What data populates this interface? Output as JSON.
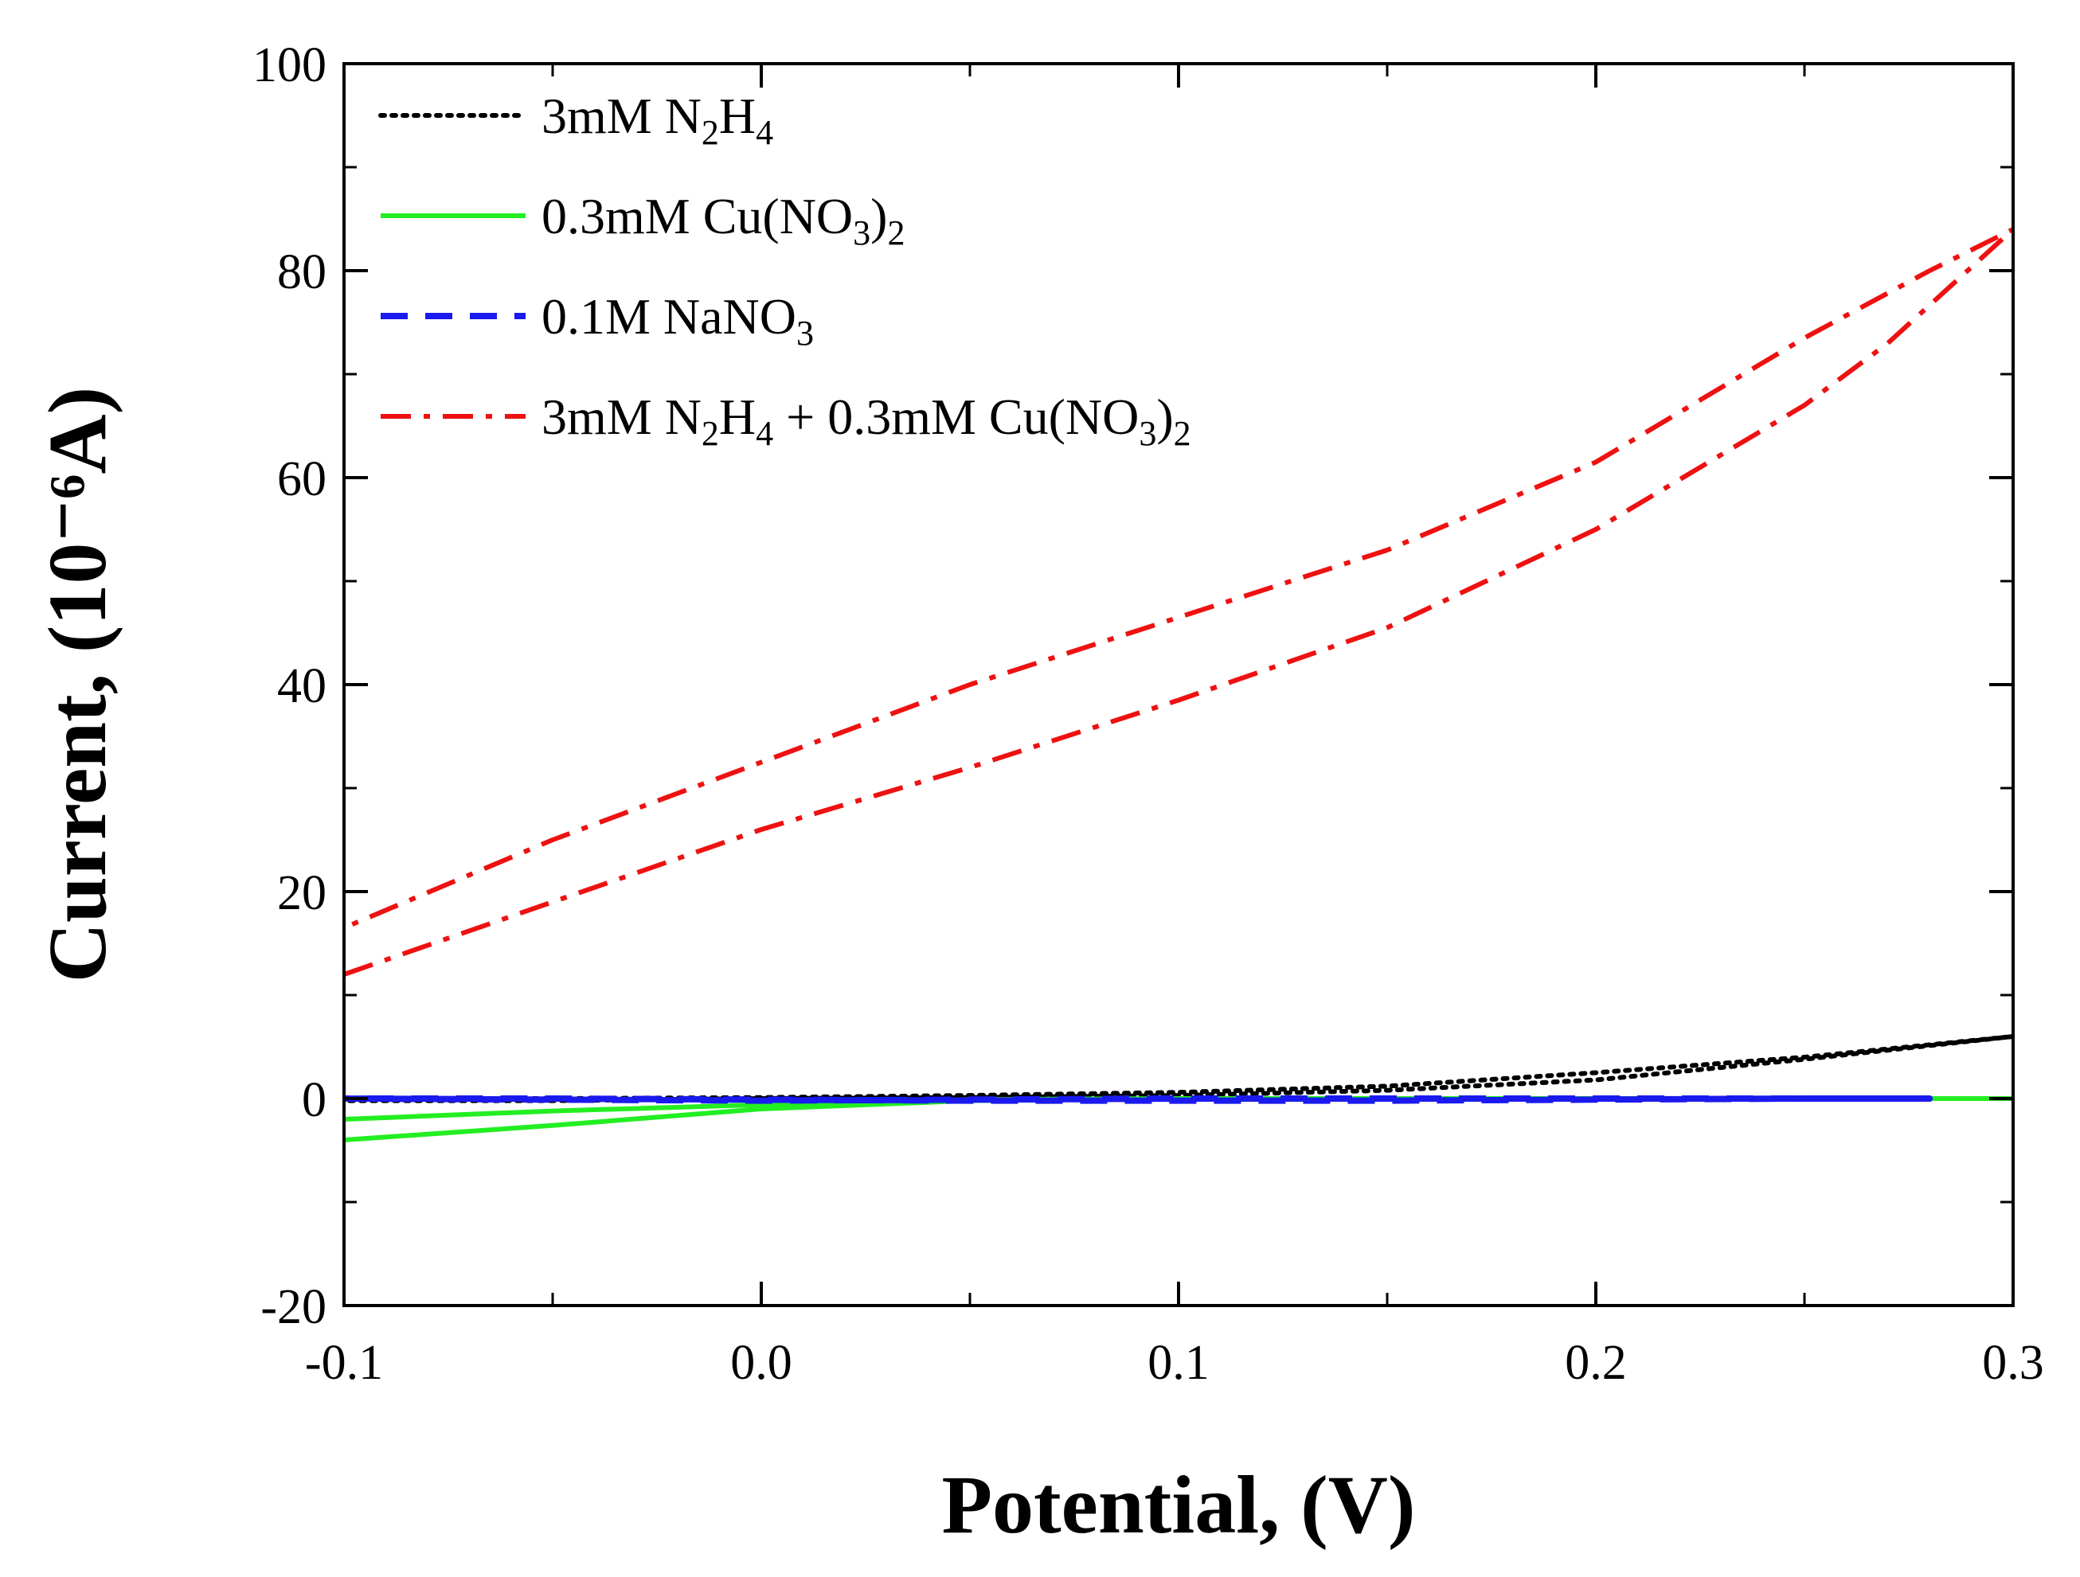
{
  "chart_data": {
    "type": "line",
    "title": "",
    "xlabel": "Potential, (V)",
    "ylabel": "Current, (10⁻⁶A)",
    "xlim": [
      -0.1,
      0.3
    ],
    "ylim": [
      -20,
      100
    ],
    "xticks": [
      -0.1,
      0.0,
      0.1,
      0.2,
      0.3
    ],
    "xtick_labels": [
      "-0.1",
      "0.0",
      "0.1",
      "0.2",
      "0.3"
    ],
    "yticks": [
      -20,
      0,
      20,
      40,
      60,
      80,
      100
    ],
    "ytick_labels": [
      "-20",
      "0",
      "20",
      "40",
      "60",
      "80",
      "100"
    ],
    "grid": false,
    "legend_position": "top-left",
    "series": [
      {
        "name": "3mM N2H4",
        "legend_parts": [
          [
            "3mM N",
            ""
          ],
          [
            "2",
            "sub"
          ],
          [
            "H",
            ""
          ],
          [
            "4",
            "sub"
          ]
        ],
        "color": "#000000",
        "style": "dotted",
        "x": [
          -0.1,
          -0.05,
          0.0,
          0.05,
          0.1,
          0.15,
          0.2,
          0.25,
          0.3,
          0.25,
          0.2,
          0.15,
          0.1,
          0.05,
          0.0,
          -0.05,
          -0.1
        ],
        "y": [
          0.0,
          0.0,
          0.1,
          0.3,
          0.6,
          1.2,
          2.5,
          4.0,
          6.0,
          3.8,
          1.8,
          0.8,
          0.3,
          0.1,
          0.0,
          -0.2,
          -0.2
        ]
      },
      {
        "name": "0.3mM Cu(NO3)2",
        "legend_parts": [
          [
            "0.3mM Cu(NO",
            ""
          ],
          [
            "3",
            "sub"
          ],
          [
            ")",
            ""
          ],
          [
            "2",
            "sub"
          ]
        ],
        "color": "#22ee22",
        "style": "solid",
        "x": [
          -0.1,
          -0.05,
          0.0,
          0.05,
          0.1,
          0.15,
          0.2,
          0.25,
          0.3,
          0.25,
          0.2,
          0.15,
          0.1,
          0.05,
          0.0,
          -0.05,
          -0.1
        ],
        "y": [
          -4.0,
          -2.6,
          -1.0,
          -0.2,
          0.0,
          0.0,
          0.0,
          0.0,
          0.0,
          0.0,
          0.0,
          0.0,
          0.0,
          -0.1,
          -0.6,
          -1.2,
          -2.0
        ]
      },
      {
        "name": "0.1M NaNO3",
        "legend_parts": [
          [
            "0.1M NaNO",
            ""
          ],
          [
            "3",
            "sub"
          ]
        ],
        "color": "#1a1aee",
        "style": "dashed",
        "x": [
          -0.1,
          -0.05,
          0.0,
          0.05,
          0.1,
          0.15,
          0.2,
          0.25,
          0.28,
          0.25,
          0.2,
          0.15,
          0.1,
          0.05,
          0.0,
          -0.05,
          -0.1
        ],
        "y": [
          0.0,
          -0.1,
          -0.2,
          -0.1,
          0.0,
          0.0,
          0.0,
          0.0,
          0.0,
          0.0,
          -0.1,
          -0.2,
          -0.2,
          -0.2,
          -0.1,
          0.0,
          0.0
        ]
      },
      {
        "name": "3mM N2H4 + 0.3mM Cu(NO3)2",
        "legend_parts": [
          [
            "3mM N",
            ""
          ],
          [
            "2",
            "sub"
          ],
          [
            "H",
            ""
          ],
          [
            "4",
            "sub"
          ],
          [
            " + 0.3mM Cu(NO",
            ""
          ],
          [
            "3",
            "sub"
          ],
          [
            ")",
            ""
          ],
          [
            "2",
            "sub"
          ]
        ],
        "color": "#ee1111",
        "style": "dashdot",
        "x": [
          -0.1,
          -0.05,
          0.0,
          0.05,
          0.1,
          0.15,
          0.2,
          0.25,
          0.27,
          0.3,
          0.28,
          0.25,
          0.2,
          0.15,
          0.1,
          0.05,
          0.0,
          -0.05,
          -0.1
        ],
        "y": [
          12.0,
          19.0,
          26.0,
          32.0,
          38.5,
          45.5,
          55.0,
          67.0,
          73.0,
          84.0,
          80.0,
          73.5,
          61.5,
          53.0,
          46.5,
          40.0,
          32.5,
          25.0,
          16.5
        ]
      }
    ]
  }
}
